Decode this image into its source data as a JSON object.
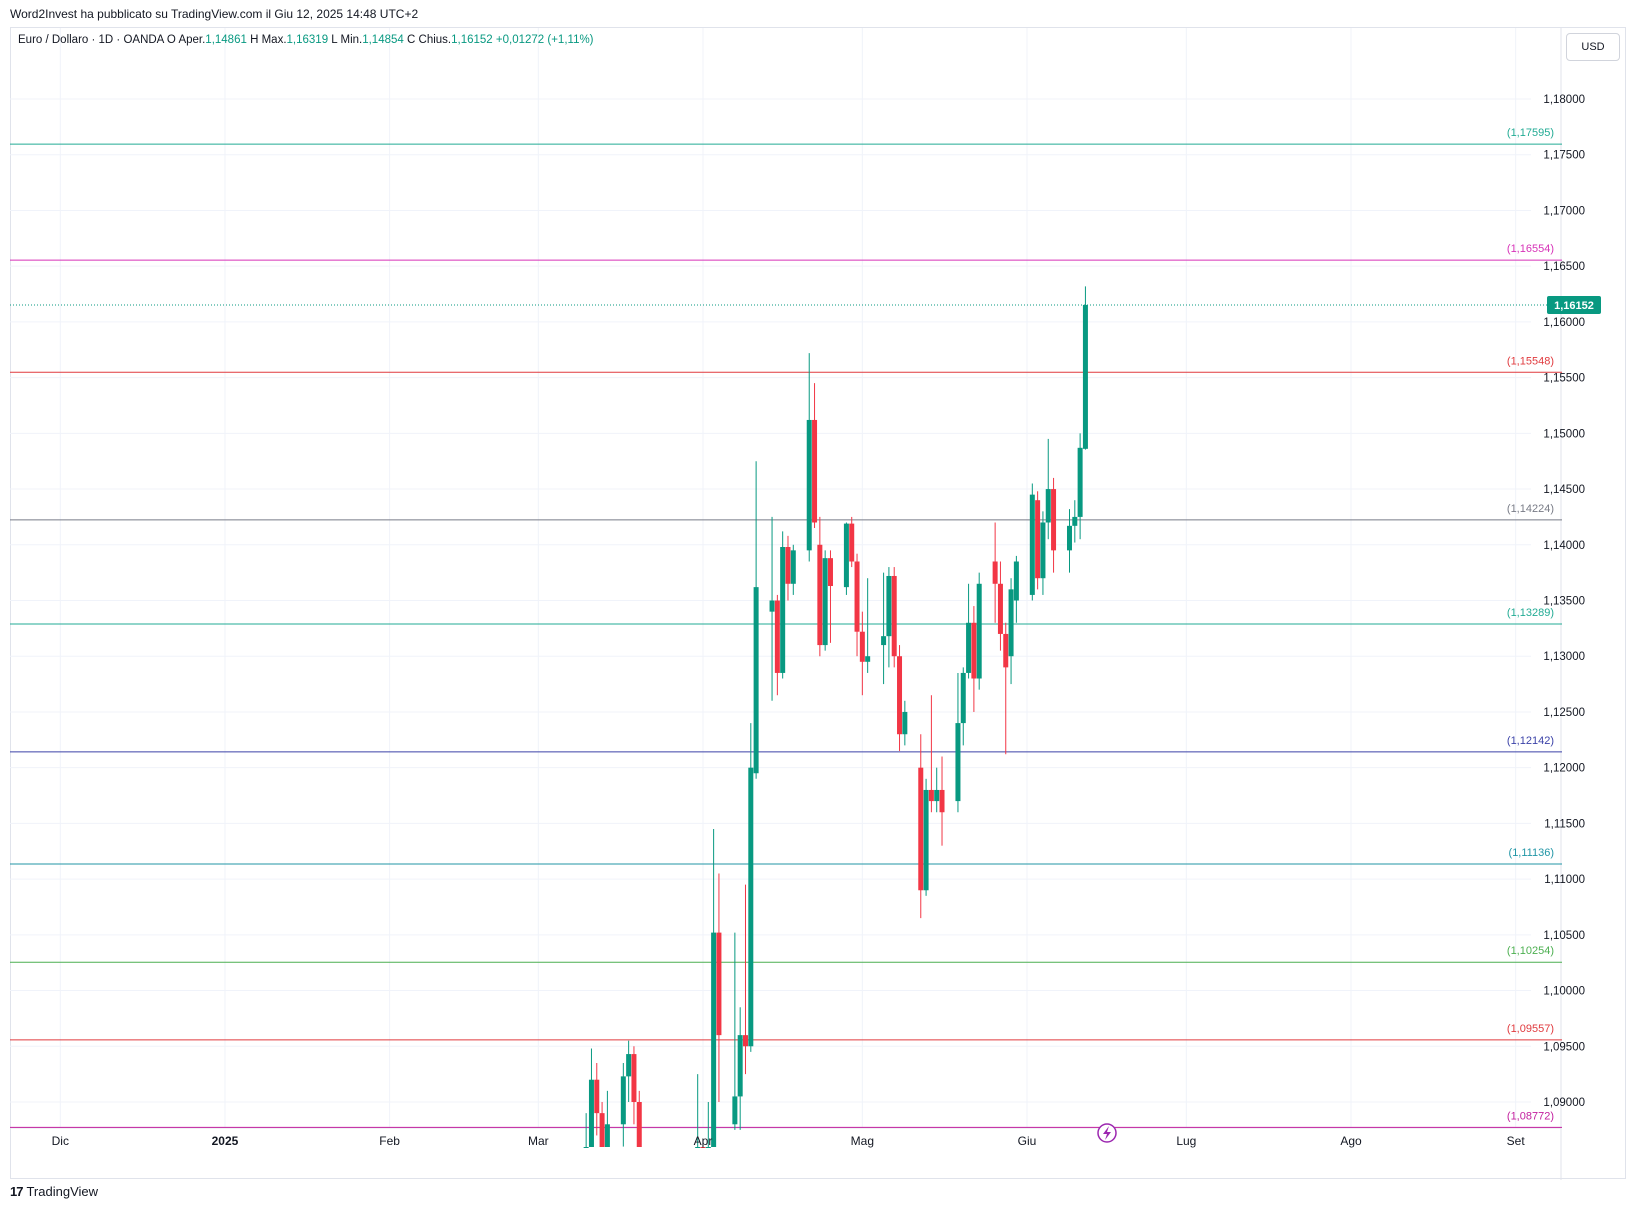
{
  "header": {
    "caption": "Word2Invest ha pubblicato su TradingView.com il Giu 12, 2025 14:48 UTC+2"
  },
  "legend": {
    "symbol": "Euro / Dollaro · 1D · OANDA",
    "open_label": "O",
    "open_prefix": "Aper.",
    "open_value": "1,14861",
    "high_label": "H",
    "high_prefix": "Max.",
    "high_value": "1,16319",
    "low_label": "L",
    "low_prefix": "Min.",
    "low_value": "1,14854",
    "close_label": "C",
    "close_prefix": "Chius.",
    "close_value": "1,16152",
    "change": "+0,01272 (+1,11%)"
  },
  "currency_button": "USD",
  "footer": {
    "brand": "TradingView",
    "logo": "17"
  },
  "chart_data": {
    "type": "candlestick",
    "symbol": "EURUSD",
    "timeframe": "1D",
    "ylim": [
      1.0865,
      1.1935
    ],
    "y_ticks": [
      "1,18000",
      "1,17500",
      "1,17000",
      "1,16500",
      "1,16000",
      "1,15500",
      "1,15000",
      "1,14500",
      "1,14000",
      "1,13500",
      "1,13000",
      "1,12500",
      "1,12000",
      "1,11500",
      "1,11000",
      "1,10500",
      "1,10000",
      "1,09500",
      "1,09000"
    ],
    "y_tick_values": [
      1.18,
      1.175,
      1.17,
      1.165,
      1.16,
      1.155,
      1.15,
      1.145,
      1.14,
      1.135,
      1.13,
      1.125,
      1.12,
      1.115,
      1.11,
      1.105,
      1.1,
      1.095,
      1.09
    ],
    "x_ticks": [
      {
        "label": "Dic",
        "date": "2024-12-01",
        "bold": false
      },
      {
        "label": "2025",
        "date": "2025-01-01",
        "bold": true
      },
      {
        "label": "Feb",
        "date": "2025-02-01",
        "bold": false
      },
      {
        "label": "Mar",
        "date": "2025-03-01",
        "bold": false
      },
      {
        "label": "Apr",
        "date": "2025-04-01",
        "bold": false
      },
      {
        "label": "Mag",
        "date": "2025-05-01",
        "bold": false
      },
      {
        "label": "Giu",
        "date": "2025-06-01",
        "bold": false
      },
      {
        "label": "Lug",
        "date": "2025-07-01",
        "bold": false
      },
      {
        "label": "Ago",
        "date": "2025-08-01",
        "bold": false
      },
      {
        "label": "Set",
        "date": "2025-09-01",
        "bold": false
      }
    ],
    "levels": [
      {
        "value": 1.17595,
        "label": "(1,17595)",
        "color": "#22ab94"
      },
      {
        "value": 1.16554,
        "label": "(1,16554)",
        "color": "#d732b8"
      },
      {
        "value": 1.15548,
        "label": "(1,15548)",
        "color": "#e03a3e"
      },
      {
        "value": 1.14224,
        "label": "(1,14224)",
        "color": "#787b86"
      },
      {
        "value": 1.13289,
        "label": "(1,13289)",
        "color": "#22ab94"
      },
      {
        "value": 1.12142,
        "label": "(1,12142)",
        "color": "#3b42a8"
      },
      {
        "value": 1.11136,
        "label": "(1,11136)",
        "color": "#2196a6"
      },
      {
        "value": 1.10254,
        "label": "(1,10254)",
        "color": "#4caf50"
      },
      {
        "value": 1.09557,
        "label": "(1,09557)",
        "color": "#e03a3e"
      },
      {
        "value": 1.08772,
        "label": "(1,08772)",
        "color": "#c21f9e"
      }
    ],
    "last_price": {
      "value": 1.16152,
      "label": "1,16152",
      "color": "#089981"
    },
    "colors": {
      "up": "#089981",
      "down": "#f23645",
      "grid": "#f0f3fa"
    },
    "candles": [
      {
        "date": "2025-03-10",
        "o": 1.083,
        "h": 1.089,
        "l": 1.08,
        "c": 1.085
      },
      {
        "date": "2025-03-11",
        "o": 1.083,
        "h": 1.0948,
        "l": 1.081,
        "c": 1.092
      },
      {
        "date": "2025-03-12",
        "o": 1.092,
        "h": 1.0935,
        "l": 1.087,
        "c": 1.089
      },
      {
        "date": "2025-03-13",
        "o": 1.089,
        "h": 1.09,
        "l": 1.083,
        "c": 1.085
      },
      {
        "date": "2025-03-14",
        "o": 1.085,
        "h": 1.091,
        "l": 1.084,
        "c": 1.088
      },
      {
        "date": "2025-03-17",
        "o": 1.088,
        "h": 1.0935,
        "l": 1.086,
        "c": 1.0923
      },
      {
        "date": "2025-03-18",
        "o": 1.0923,
        "h": 1.0955,
        "l": 1.09,
        "c": 1.0943
      },
      {
        "date": "2025-03-19",
        "o": 1.0943,
        "h": 1.095,
        "l": 1.088,
        "c": 1.09
      },
      {
        "date": "2025-03-20",
        "o": 1.09,
        "h": 1.091,
        "l": 1.084,
        "c": 1.0855
      },
      {
        "date": "2025-03-31",
        "o": 1.08,
        "h": 1.0925,
        "l": 1.079,
        "c": 1.0815
      },
      {
        "date": "2025-04-01",
        "o": 1.0815,
        "h": 1.0845,
        "l": 1.0785,
        "c": 1.079
      },
      {
        "date": "2025-04-02",
        "o": 1.079,
        "h": 1.09,
        "l": 1.078,
        "c": 1.085
      },
      {
        "date": "2025-04-03",
        "o": 1.085,
        "h": 1.1145,
        "l": 1.084,
        "c": 1.1052
      },
      {
        "date": "2025-04-04",
        "o": 1.1052,
        "h": 1.1105,
        "l": 1.09,
        "c": 1.096
      },
      {
        "date": "2025-04-07",
        "o": 1.088,
        "h": 1.1052,
        "l": 1.0875,
        "c": 1.0905
      },
      {
        "date": "2025-04-08",
        "o": 1.0905,
        "h": 1.0985,
        "l": 1.0875,
        "c": 1.096
      },
      {
        "date": "2025-04-09",
        "o": 1.096,
        "h": 1.1095,
        "l": 1.0925,
        "c": 1.095
      },
      {
        "date": "2025-04-10",
        "o": 1.095,
        "h": 1.124,
        "l": 1.0945,
        "c": 1.12
      },
      {
        "date": "2025-04-11",
        "o": 1.1195,
        "h": 1.1475,
        "l": 1.119,
        "c": 1.1362
      },
      {
        "date": "2025-04-14",
        "o": 1.134,
        "h": 1.1425,
        "l": 1.126,
        "c": 1.135
      },
      {
        "date": "2025-04-15",
        "o": 1.135,
        "h": 1.1355,
        "l": 1.1265,
        "c": 1.1285
      },
      {
        "date": "2025-04-16",
        "o": 1.1285,
        "h": 1.1412,
        "l": 1.128,
        "c": 1.1398
      },
      {
        "date": "2025-04-17",
        "o": 1.1398,
        "h": 1.1408,
        "l": 1.135,
        "c": 1.1365
      },
      {
        "date": "2025-04-18",
        "o": 1.1365,
        "h": 1.14,
        "l": 1.1355,
        "c": 1.1395
      },
      {
        "date": "2025-04-21",
        "o": 1.1395,
        "h": 1.1572,
        "l": 1.1385,
        "c": 1.1512
      },
      {
        "date": "2025-04-22",
        "o": 1.1512,
        "h": 1.1545,
        "l": 1.1415,
        "c": 1.142
      },
      {
        "date": "2025-04-23",
        "o": 1.14,
        "h": 1.1425,
        "l": 1.13,
        "c": 1.131
      },
      {
        "date": "2025-04-24",
        "o": 1.131,
        "h": 1.1395,
        "l": 1.1305,
        "c": 1.1388
      },
      {
        "date": "2025-04-25",
        "o": 1.1388,
        "h": 1.1395,
        "l": 1.1312,
        "c": 1.1363
      },
      {
        "date": "2025-04-28",
        "o": 1.1362,
        "h": 1.142,
        "l": 1.1355,
        "c": 1.1419
      },
      {
        "date": "2025-04-29",
        "o": 1.1419,
        "h": 1.1425,
        "l": 1.138,
        "c": 1.1385
      },
      {
        "date": "2025-04-30",
        "o": 1.1385,
        "h": 1.1392,
        "l": 1.13,
        "c": 1.1322
      },
      {
        "date": "2025-05-01",
        "o": 1.1322,
        "h": 1.134,
        "l": 1.1265,
        "c": 1.1295
      },
      {
        "date": "2025-05-02",
        "o": 1.1295,
        "h": 1.137,
        "l": 1.1285,
        "c": 1.13
      },
      {
        "date": "2025-05-05",
        "o": 1.131,
        "h": 1.1375,
        "l": 1.1275,
        "c": 1.1318
      },
      {
        "date": "2025-05-06",
        "o": 1.1318,
        "h": 1.138,
        "l": 1.129,
        "c": 1.1372
      },
      {
        "date": "2025-05-07",
        "o": 1.1372,
        "h": 1.138,
        "l": 1.129,
        "c": 1.13
      },
      {
        "date": "2025-05-08",
        "o": 1.13,
        "h": 1.131,
        "l": 1.1215,
        "c": 1.123
      },
      {
        "date": "2025-05-09",
        "o": 1.123,
        "h": 1.126,
        "l": 1.122,
        "c": 1.125
      },
      {
        "date": "2025-05-12",
        "o": 1.12,
        "h": 1.123,
        "l": 1.1065,
        "c": 1.109
      },
      {
        "date": "2025-05-13",
        "o": 1.109,
        "h": 1.119,
        "l": 1.1085,
        "c": 1.118
      },
      {
        "date": "2025-05-14",
        "o": 1.118,
        "h": 1.1265,
        "l": 1.116,
        "c": 1.117
      },
      {
        "date": "2025-05-15",
        "o": 1.117,
        "h": 1.12,
        "l": 1.116,
        "c": 1.118
      },
      {
        "date": "2025-05-16",
        "o": 1.118,
        "h": 1.121,
        "l": 1.113,
        "c": 1.116
      },
      {
        "date": "2025-05-19",
        "o": 1.117,
        "h": 1.1285,
        "l": 1.116,
        "c": 1.124
      },
      {
        "date": "2025-05-20",
        "o": 1.124,
        "h": 1.129,
        "l": 1.122,
        "c": 1.1285
      },
      {
        "date": "2025-05-21",
        "o": 1.1285,
        "h": 1.1365,
        "l": 1.128,
        "c": 1.133
      },
      {
        "date": "2025-05-22",
        "o": 1.133,
        "h": 1.1345,
        "l": 1.125,
        "c": 1.128
      },
      {
        "date": "2025-05-23",
        "o": 1.128,
        "h": 1.1375,
        "l": 1.127,
        "c": 1.1365
      },
      {
        "date": "2025-05-26",
        "o": 1.1385,
        "h": 1.142,
        "l": 1.133,
        "c": 1.1365
      },
      {
        "date": "2025-05-27",
        "o": 1.1365,
        "h": 1.1385,
        "l": 1.1305,
        "c": 1.132
      },
      {
        "date": "2025-05-28",
        "o": 1.132,
        "h": 1.133,
        "l": 1.1212,
        "c": 1.129
      },
      {
        "date": "2025-05-29",
        "o": 1.13,
        "h": 1.137,
        "l": 1.1275,
        "c": 1.136
      },
      {
        "date": "2025-05-30",
        "o": 1.135,
        "h": 1.139,
        "l": 1.133,
        "c": 1.1385
      },
      {
        "date": "2025-06-02",
        "o": 1.1355,
        "h": 1.1455,
        "l": 1.135,
        "c": 1.1445
      },
      {
        "date": "2025-06-03",
        "o": 1.144,
        "h": 1.1448,
        "l": 1.136,
        "c": 1.137
      },
      {
        "date": "2025-06-04",
        "o": 1.137,
        "h": 1.143,
        "l": 1.1355,
        "c": 1.142
      },
      {
        "date": "2025-06-05",
        "o": 1.142,
        "h": 1.1495,
        "l": 1.1405,
        "c": 1.145
      },
      {
        "date": "2025-06-06",
        "o": 1.145,
        "h": 1.146,
        "l": 1.1375,
        "c": 1.1395
      },
      {
        "date": "2025-06-09",
        "o": 1.1395,
        "h": 1.1432,
        "l": 1.1375,
        "c": 1.1417
      },
      {
        "date": "2025-06-10",
        "o": 1.1417,
        "h": 1.144,
        "l": 1.1402,
        "c": 1.1425
      },
      {
        "date": "2025-06-11",
        "o": 1.1425,
        "h": 1.15,
        "l": 1.1405,
        "c": 1.1487
      },
      {
        "date": "2025-06-12",
        "o": 1.14861,
        "h": 1.16319,
        "l": 1.14854,
        "c": 1.16152
      }
    ]
  }
}
